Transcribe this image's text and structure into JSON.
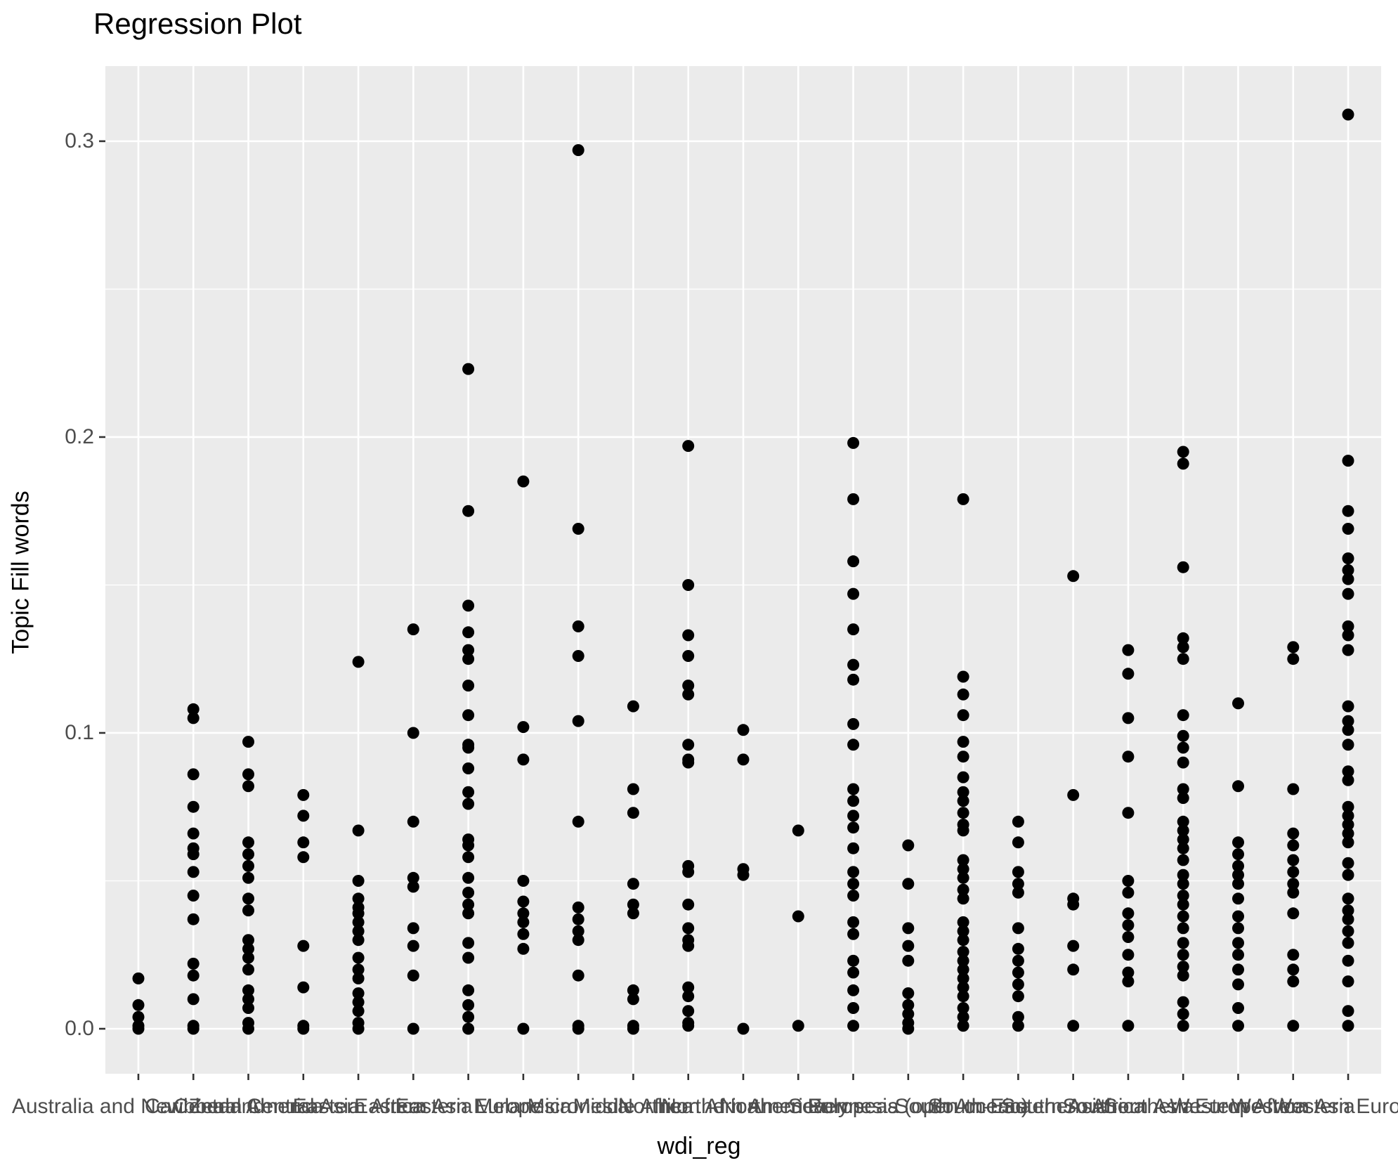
{
  "page": {
    "title": "Regression Plot"
  },
  "axis": {
    "x_title": "wdi_reg",
    "y_title": "Topic Fill words",
    "y_tick_labels": [
      "0.0",
      "0.1",
      "0.2",
      "0.3"
    ]
  },
  "colors": {
    "panel_background": "#EBEBEB",
    "gridline": "#FFFFFF",
    "point": "#000000",
    "tick_mark": "#333333",
    "tick_text": "#4D4D4D",
    "title_text": "#000000"
  },
  "chart_data": {
    "type": "scatter",
    "title": "Regression Plot",
    "xlabel": "wdi_reg",
    "ylabel": "Topic Fill words",
    "y_ticks": [
      0.0,
      0.1,
      0.2,
      0.3
    ],
    "y_minor_ticks": [
      0.05,
      0.15,
      0.25
    ],
    "ylim": [
      -0.0152,
      0.3254
    ],
    "grid": true,
    "legend": "none",
    "categories": [
      {
        "label": "Australia and New Zealand",
        "values": [
          0.017,
          0.008,
          0.004,
          0.001,
          0.0
        ]
      },
      {
        "label": "Caribbean",
        "values": [
          0.108,
          0.105,
          0.086,
          0.075,
          0.066,
          0.061,
          0.059,
          0.053,
          0.045,
          0.037,
          0.022,
          0.018,
          0.01,
          0.001,
          0.0
        ]
      },
      {
        "label": "Central America",
        "values": [
          0.097,
          0.086,
          0.082,
          0.063,
          0.059,
          0.055,
          0.051,
          0.044,
          0.04,
          0.03,
          0.027,
          0.024,
          0.02,
          0.013,
          0.01,
          0.007,
          0.002,
          0.0
        ]
      },
      {
        "label": "Central Asia",
        "values": [
          0.079,
          0.072,
          0.063,
          0.058,
          0.028,
          0.014,
          0.001,
          0.0
        ]
      },
      {
        "label": "Eastern Africa",
        "values": [
          0.124,
          0.067,
          0.05,
          0.044,
          0.041,
          0.039,
          0.036,
          0.033,
          0.03,
          0.024,
          0.02,
          0.017,
          0.012,
          0.009,
          0.006,
          0.002,
          0.0
        ]
      },
      {
        "label": "Eastern Asia",
        "values": [
          0.135,
          0.1,
          0.07,
          0.051,
          0.048,
          0.034,
          0.028,
          0.018,
          0.0
        ]
      },
      {
        "label": "Eastern Europe",
        "values": [
          0.223,
          0.175,
          0.143,
          0.134,
          0.128,
          0.125,
          0.116,
          0.106,
          0.096,
          0.095,
          0.088,
          0.08,
          0.076,
          0.064,
          0.062,
          0.058,
          0.051,
          0.046,
          0.042,
          0.039,
          0.029,
          0.024,
          0.013,
          0.008,
          0.004,
          0.0
        ]
      },
      {
        "label": "Melanesia",
        "values": [
          0.185,
          0.102,
          0.091,
          0.05,
          0.043,
          0.039,
          0.036,
          0.032,
          0.027,
          0.0
        ]
      },
      {
        "label": "Micronesia",
        "values": [
          0.297,
          0.169,
          0.136,
          0.126,
          0.104,
          0.07,
          0.041,
          0.037,
          0.033,
          0.03,
          0.018,
          0.001,
          0.0
        ]
      },
      {
        "label": "Middle Africa",
        "values": [
          0.109,
          0.081,
          0.073,
          0.049,
          0.042,
          0.039,
          0.013,
          0.01,
          0.001,
          0.0
        ]
      },
      {
        "label": "Northern Africa",
        "values": [
          0.197,
          0.15,
          0.133,
          0.126,
          0.116,
          0.113,
          0.096,
          0.091,
          0.09,
          0.055,
          0.053,
          0.042,
          0.034,
          0.03,
          0.028,
          0.014,
          0.011,
          0.006,
          0.002,
          0.001
        ]
      },
      {
        "label": "Northern America",
        "values": [
          0.101,
          0.091,
          0.054,
          0.052,
          0.0
        ]
      },
      {
        "label": "Northern Europe",
        "values": [
          0.067,
          0.038,
          0.001
        ]
      },
      {
        "label": "Polynesia",
        "values": [
          0.198,
          0.179,
          0.158,
          0.147,
          0.135,
          0.123,
          0.118,
          0.103,
          0.096,
          0.081,
          0.077,
          0.072,
          0.068,
          0.061,
          0.053,
          0.049,
          0.045,
          0.036,
          0.032,
          0.023,
          0.019,
          0.013,
          0.007,
          0.001
        ]
      },
      {
        "label": "Seven seas (open ocean)",
        "values": [
          0.062,
          0.049,
          0.034,
          0.028,
          0.023,
          0.012,
          0.008,
          0.005,
          0.002,
          0.0
        ]
      },
      {
        "label": "South America",
        "values": [
          0.179,
          0.119,
          0.113,
          0.106,
          0.097,
          0.092,
          0.085,
          0.08,
          0.077,
          0.073,
          0.069,
          0.067,
          0.057,
          0.054,
          0.051,
          0.047,
          0.044,
          0.036,
          0.033,
          0.03,
          0.026,
          0.023,
          0.02,
          0.017,
          0.014,
          0.011,
          0.007,
          0.004,
          0.001
        ]
      },
      {
        "label": "South-Eastern Asia",
        "values": [
          0.07,
          0.063,
          0.053,
          0.049,
          0.046,
          0.034,
          0.027,
          0.023,
          0.019,
          0.015,
          0.011,
          0.004,
          0.001
        ]
      },
      {
        "label": "Southern Africa",
        "values": [
          0.153,
          0.079,
          0.044,
          0.042,
          0.028,
          0.02,
          0.001
        ]
      },
      {
        "label": "Southern Asia",
        "values": [
          0.128,
          0.12,
          0.105,
          0.092,
          0.073,
          0.05,
          0.046,
          0.039,
          0.035,
          0.031,
          0.025,
          0.019,
          0.016,
          0.001
        ]
      },
      {
        "label": "Southern Europe",
        "values": [
          0.195,
          0.191,
          0.156,
          0.132,
          0.129,
          0.125,
          0.106,
          0.099,
          0.095,
          0.09,
          0.081,
          0.078,
          0.07,
          0.067,
          0.064,
          0.061,
          0.057,
          0.052,
          0.049,
          0.045,
          0.042,
          0.038,
          0.034,
          0.029,
          0.025,
          0.021,
          0.018,
          0.009,
          0.005,
          0.001
        ]
      },
      {
        "label": "Western Africa",
        "values": [
          0.11,
          0.082,
          0.063,
          0.059,
          0.055,
          0.052,
          0.049,
          0.044,
          0.038,
          0.034,
          0.029,
          0.025,
          0.02,
          0.015,
          0.007,
          0.001
        ]
      },
      {
        "label": "Western Asia",
        "values": [
          0.129,
          0.125,
          0.081,
          0.066,
          0.062,
          0.057,
          0.053,
          0.049,
          0.046,
          0.039,
          0.025,
          0.02,
          0.016,
          0.001
        ]
      },
      {
        "label": "Western Europe",
        "values": [
          0.309,
          0.192,
          0.175,
          0.169,
          0.159,
          0.155,
          0.152,
          0.147,
          0.136,
          0.133,
          0.128,
          0.109,
          0.104,
          0.101,
          0.096,
          0.087,
          0.084,
          0.075,
          0.072,
          0.069,
          0.066,
          0.063,
          0.056,
          0.052,
          0.044,
          0.04,
          0.037,
          0.033,
          0.029,
          0.023,
          0.016,
          0.006,
          0.001
        ]
      }
    ]
  }
}
